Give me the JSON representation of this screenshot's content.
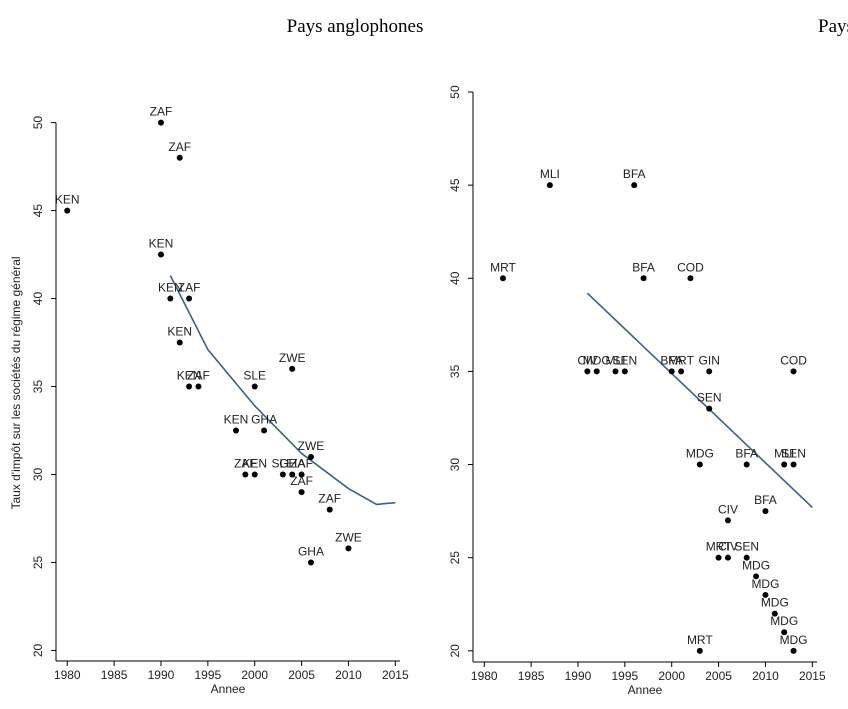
{
  "chart_data": [
    {
      "type": "scatter",
      "title": "Pays anglophones",
      "ylabel": "Taux d'impôt sur les sociétés du régime général",
      "xlabel": "Annee",
      "xlim": [
        1978.8,
        2015.5
      ],
      "ylim": [
        19.4,
        51
      ],
      "xticks": [
        1980,
        1985,
        1990,
        1995,
        2000,
        2005,
        2010,
        2015
      ],
      "yticks": [
        20,
        25,
        30,
        35,
        40,
        45,
        50
      ],
      "color": "#000000",
      "fit_color": "#3a5f8a",
      "x": [
        1980,
        1990,
        1992,
        1990,
        1991,
        1993,
        1992,
        1993,
        1994,
        2000,
        2004,
        1998,
        2001,
        1999,
        2000,
        2003,
        2004,
        2005,
        2006,
        2005,
        2008,
        2010,
        2006
      ],
      "values": [
        45,
        50,
        48,
        42.5,
        40,
        40,
        37.5,
        35,
        35,
        35,
        36,
        32.5,
        32.5,
        30,
        30,
        30,
        30,
        30,
        31,
        29,
        28,
        25.8,
        25
      ],
      "labels": [
        "KEN",
        "ZAF",
        "ZAF",
        "KEN",
        "KEN",
        "ZAF",
        "KEN",
        "KEN",
        "ZAF",
        "SLE",
        "ZWE",
        "KEN",
        "GHA",
        "ZAF",
        "KEN",
        "SLE",
        "GHA",
        "ZAF",
        "ZWE",
        "ZAF",
        "ZAF",
        "ZWE",
        "GHA"
      ],
      "fit": {
        "x": [
          1991,
          1995,
          2000,
          2005,
          2010,
          2013,
          2015
        ],
        "values": [
          41.3,
          37.1,
          33.9,
          31.2,
          29.2,
          28.3,
          28.4
        ]
      }
    },
    {
      "type": "scatter",
      "title": "Pays francophones",
      "xlabel": "Annee",
      "xlim": [
        1978.8,
        2015.5
      ],
      "ylim": [
        19.4,
        50
      ],
      "xticks": [
        1980,
        1985,
        1990,
        1995,
        2000,
        2005,
        2010,
        2015
      ],
      "yticks": [
        20,
        25,
        30,
        35,
        40,
        45,
        50
      ],
      "color": "#000000",
      "fit_color": "#3a5f8a",
      "x": [
        1982,
        1987,
        1996,
        1997,
        2002,
        1991,
        1992,
        1994,
        1995,
        2000,
        2001,
        2004,
        2013,
        2004,
        2003,
        2008,
        2012,
        2013,
        2010,
        2006,
        2005,
        2006,
        2008,
        2009,
        2010,
        2011,
        2012,
        2013,
        2003
      ],
      "values": [
        40,
        45,
        45,
        40,
        40,
        35,
        35,
        35,
        35,
        35,
        35,
        35,
        35,
        33,
        30,
        30,
        30,
        30,
        27.5,
        27,
        25,
        25,
        25,
        24,
        23,
        22,
        21,
        20,
        20
      ],
      "labels": [
        "MRT",
        "MLI",
        "BFA",
        "BFA",
        "COD",
        "CIV",
        "MDG",
        "MLI",
        "SEN",
        "BFA",
        "MRT",
        "GIN",
        "COD",
        "SEN",
        "MDG",
        "BFA",
        "MLI",
        "SEN",
        "BFA",
        "CIV",
        "MRT",
        "CIV",
        "SEN",
        "MDG",
        "MDG",
        "MDG",
        "MDG",
        "MDG",
        "MRT"
      ],
      "fit": {
        "x": [
          1991,
          2015
        ],
        "values": [
          39.2,
          27.7
        ]
      }
    }
  ]
}
